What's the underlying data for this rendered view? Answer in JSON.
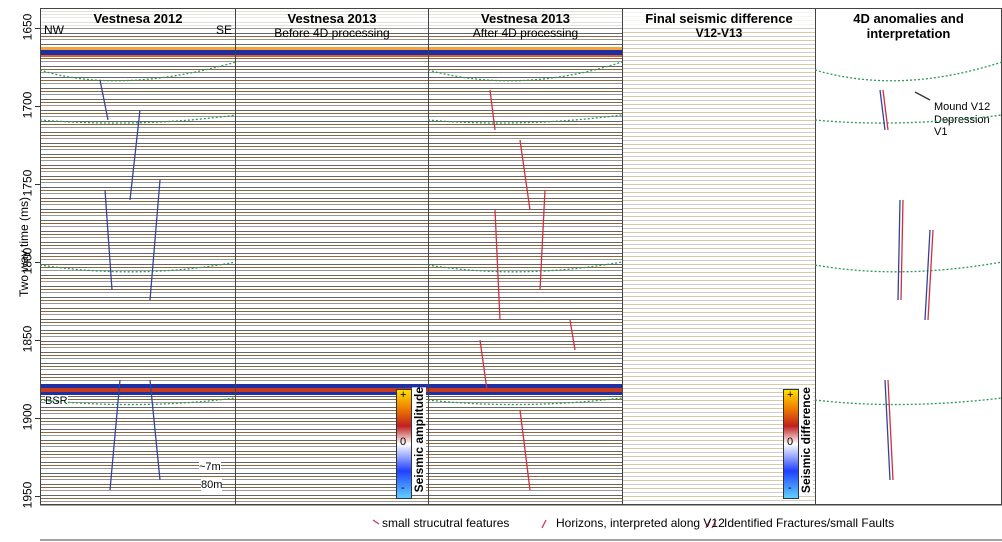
{
  "y_axis": {
    "label": "Two way time (ms)",
    "lim": [
      1637,
      1956
    ],
    "ticks": [
      1650,
      1700,
      1750,
      1800,
      1850,
      1900,
      1950
    ]
  },
  "panels": [
    {
      "title": "Vestnesa 2012",
      "left_label": "NW",
      "right_label": "SE"
    },
    {
      "title": "Vestnesa 2013",
      "subtitle": "Before 4D processing"
    },
    {
      "title": "Vestnesa 2013",
      "subtitle": "After 4D processing"
    },
    {
      "title": "Final seismic difference",
      "subtitle": "V12-V13"
    },
    {
      "title": "4D anomalies and",
      "subtitle": "interpretation"
    }
  ],
  "annotations": {
    "bsr": "BSR",
    "scale_vertical": "~7m",
    "scale_horizontal": "80m",
    "mound": "Mound V12",
    "depression": "Depression V1"
  },
  "colorbars": [
    {
      "title": "Seismic amplitude",
      "max": "+",
      "mid": "0",
      "min": "-"
    },
    {
      "title": "Seismic difference",
      "max": "+",
      "mid": "0",
      "min": "-"
    }
  ],
  "legend": [
    "small strucutral features",
    "Horizons, interpreted along V12",
    "Identified Fractures/small Faults"
  ]
}
